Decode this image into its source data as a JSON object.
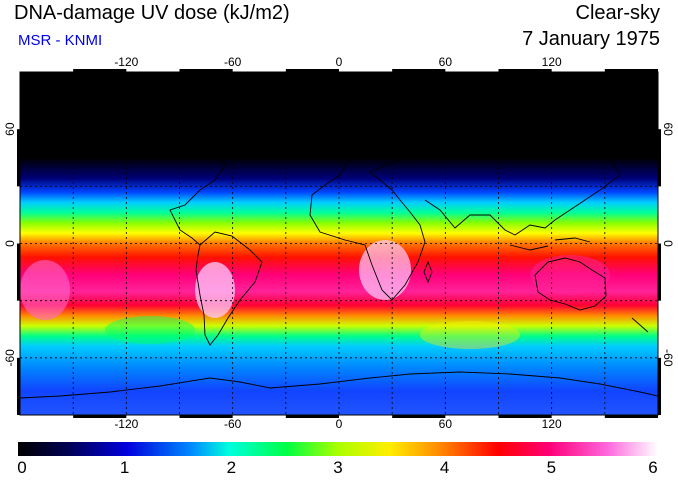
{
  "header": {
    "title": "DNA-damage UV dose (kJ/m2)",
    "subtitle": "MSR - KNMI",
    "sky_condition": "Clear-sky",
    "date": "7 January 1975"
  },
  "map": {
    "lon_ticks": [
      "-120",
      "-60",
      "0",
      "60",
      "120"
    ],
    "lat_ticks_left": [
      "60",
      "0",
      "-60"
    ],
    "lat_ticks_right": [
      "60",
      "0",
      "-60"
    ],
    "lon_values": [
      -120,
      -60,
      0,
      60,
      120
    ],
    "lat_values": [
      60,
      0,
      -60
    ],
    "lon_range": [
      -180,
      180
    ],
    "lat_range": [
      -90,
      90
    ]
  },
  "colorbar": {
    "labels": [
      "0",
      "1",
      "2",
      "3",
      "4",
      "5",
      "6"
    ],
    "min": 0,
    "max": 6,
    "stops": [
      "#000000",
      "#0000cc",
      "#00aaff",
      "#00ffaa",
      "#00ff00",
      "#ffff00",
      "#ff8800",
      "#ff0000",
      "#ff0088",
      "#ff55dd",
      "#ffffff"
    ]
  },
  "colors": {
    "title": "#000000",
    "subtitle": "#0000ee"
  }
}
